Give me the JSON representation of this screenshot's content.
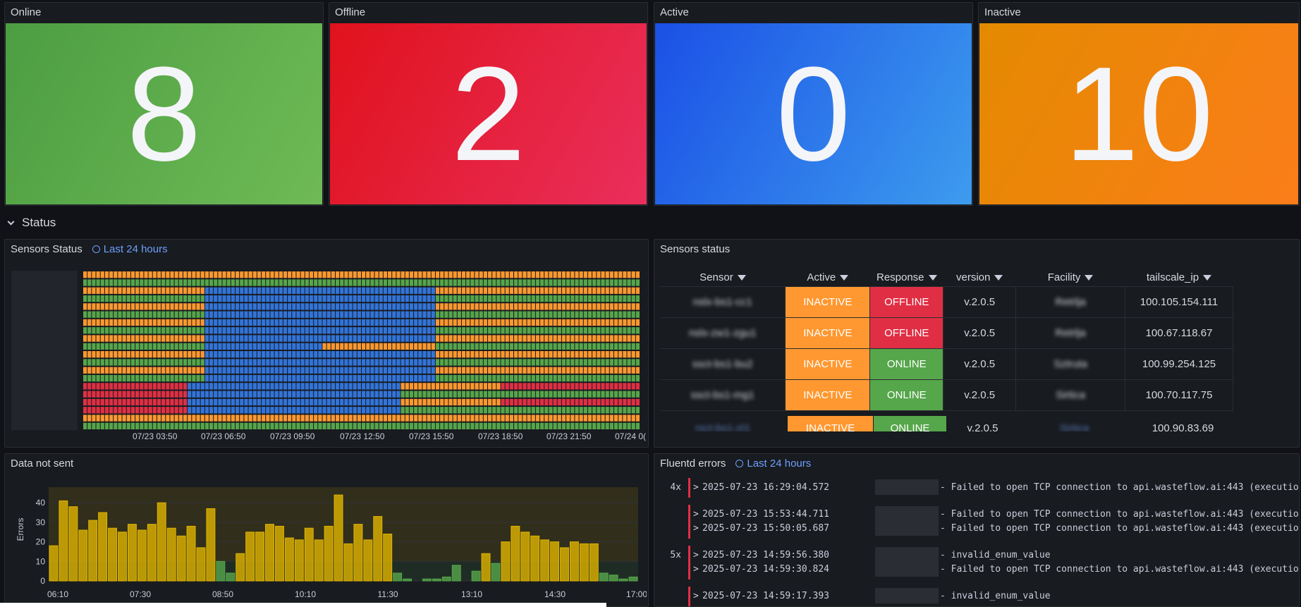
{
  "stats": [
    {
      "title": "Online",
      "value": "8",
      "color": "#56a64b"
    },
    {
      "title": "Offline",
      "value": "2",
      "color": "#e02f44"
    },
    {
      "title": "Active",
      "value": "0",
      "color": "#3274d9"
    },
    {
      "title": "Inactive",
      "value": "10",
      "color": "#ff9830"
    }
  ],
  "row": {
    "title": "Status"
  },
  "timeline": {
    "title": "Sensors Status",
    "range": "Last 24 hours",
    "ticks": [
      "07/23 03:50",
      "07/23 06:50",
      "07/23 09:50",
      "07/23 12:50",
      "07/23 15:50",
      "07/23 18:50",
      "07/23 21:50",
      "07/24 0("
    ]
  },
  "table": {
    "title": "Sensors status",
    "columns": [
      "Sensor",
      "Active",
      "Response",
      "version",
      "Facility",
      "tailscale_ip"
    ],
    "rows": [
      {
        "sensor": "nslx-bs1-cc1",
        "active": "INACTIVE",
        "response": "OFFLINE",
        "version": "v.2.0.5",
        "facility": "Retrlja",
        "ip": "100.105.154.111"
      },
      {
        "sensor": "nslx-zw1-zgu1",
        "active": "INACTIVE",
        "response": "OFFLINE",
        "version": "v.2.0.5",
        "facility": "Retrlja",
        "ip": "100.67.118.67"
      },
      {
        "sensor": "ssct-bs1-bu2",
        "active": "INACTIVE",
        "response": "ONLINE",
        "version": "v.2.0.5",
        "facility": "Sztruta",
        "ip": "100.99.254.125"
      },
      {
        "sensor": "ssct-bs1-mg1",
        "active": "INACTIVE",
        "response": "ONLINE",
        "version": "v.2.0.5",
        "facility": "Sirtica",
        "ip": "100.70.117.75"
      },
      {
        "sensor": "rsct-bs1-zt1",
        "active": "INACTIVE",
        "response": "ONLINE",
        "version": "v.2.0.5",
        "facility": "Sirtica",
        "ip": "100.90.83.69"
      }
    ]
  },
  "chart": {
    "title": "Data not sent",
    "ylabel": "Errors",
    "yticks": [
      "40",
      "30",
      "20",
      "10",
      "0"
    ],
    "xticks": [
      "06:10",
      "07:30",
      "08:50",
      "10:10",
      "11:30",
      "13:10",
      "14:30",
      "17:00"
    ]
  },
  "chart_data": {
    "type": "bar",
    "ylabel": "Errors",
    "ylim": [
      0,
      48
    ],
    "values": [
      18,
      41,
      38,
      26,
      31,
      35,
      27,
      25,
      29,
      26,
      29,
      40,
      27,
      23,
      28,
      17,
      37,
      10,
      4,
      14,
      25,
      25,
      29,
      28,
      22,
      21,
      27,
      21,
      28,
      44,
      19,
      29,
      21,
      33,
      24,
      4,
      1,
      0,
      1,
      1,
      2,
      8,
      0,
      5,
      14,
      9,
      20,
      28,
      25,
      23,
      21,
      20,
      17,
      20,
      19,
      19,
      4,
      3,
      1,
      2
    ],
    "series_colors": [
      "#e0b400",
      "#56a64b"
    ]
  },
  "logs": {
    "title": "Fluentd errors",
    "range": "Last 24 hours",
    "lines": [
      {
        "count": "4x",
        "ts": "2025-07-23 16:29:04.572",
        "msg": "- Failed to open TCP connection to api.wasteflow.ai:443 (execution expire"
      },
      {
        "count": "",
        "ts": "2025-07-23 15:53:44.711",
        "msg": "- Failed to open TCP connection to api.wasteflow.ai:443 (execution expired)"
      },
      {
        "count": "",
        "ts": "2025-07-23 15:50:05.687",
        "msg": "- Failed to open TCP connection to api.wasteflow.ai:443 (execution expire"
      },
      {
        "count": "5x",
        "ts": "2025-07-23 14:59:56.380",
        "msg": "- invalid_enum_value"
      },
      {
        "count": "",
        "ts": "2025-07-23 14:59:30.824",
        "msg": "- Failed to open TCP connection to api.wasteflow.ai:443 (execution expire"
      },
      {
        "count": "",
        "ts": "2025-07-23 14:59:17.393",
        "msg": "- invalid_enum_value"
      }
    ]
  }
}
